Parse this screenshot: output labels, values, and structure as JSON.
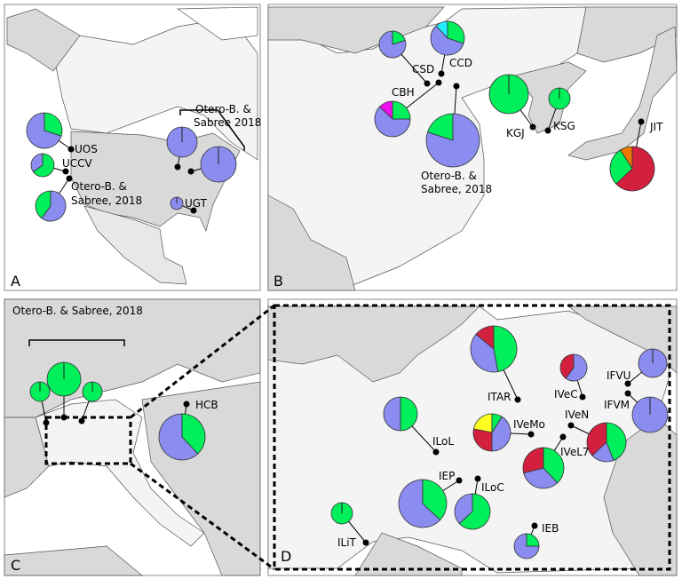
{
  "colors": {
    "blue": "#8a8cf0",
    "green": "#00ef5a",
    "red": "#d3203f",
    "cyan": "#22eeff",
    "magenta": "#ee11ee",
    "orange": "#ee7700",
    "yellow": "#ffff22",
    "sea": "#ffffff",
    "land_light": "#f4f4f4",
    "land_mid": "#d9d9d9",
    "land_dark": "#cccccc"
  },
  "panels": {
    "A": {
      "letter": "A",
      "citation_west_1": "Otero-B. &",
      "citation_west_2": "Sabree, 2018",
      "citation_east_1": "Otero-B. &",
      "citation_east_2": "Sabree 2018"
    },
    "B": {
      "letter": "B",
      "citation_1": "Otero-B. &",
      "citation_2": "Sabree, 2018"
    },
    "C": {
      "letter": "C",
      "citation": "Otero-B. & Sabree, 2018"
    },
    "D": {
      "letter": "D"
    }
  },
  "sites": [
    {
      "id": "UOS",
      "label": "UOS",
      "panel": "A",
      "slices": [
        [
          "green",
          0.3
        ],
        [
          "blue",
          0.7
        ]
      ]
    },
    {
      "id": "UCCV",
      "label": "UCCV",
      "panel": "A",
      "slices": [
        [
          "green",
          0.65
        ],
        [
          "blue",
          0.35
        ]
      ]
    },
    {
      "id": "OSW",
      "label": "",
      "panel": "A",
      "slices": [
        [
          "blue",
          0.6
        ],
        [
          "green",
          0.4
        ]
      ]
    },
    {
      "id": "OGL1",
      "label": "",
      "panel": "A",
      "slices": [
        [
          "blue",
          1
        ]
      ]
    },
    {
      "id": "OGL2",
      "label": "",
      "panel": "A",
      "slices": [
        [
          "blue",
          1
        ]
      ]
    },
    {
      "id": "UGT",
      "label": "UGT",
      "panel": "A",
      "slices": [
        [
          "blue",
          1
        ]
      ]
    },
    {
      "id": "CSD",
      "label": "CSD",
      "panel": "B",
      "slices": [
        [
          "green",
          0.2
        ],
        [
          "blue",
          0.8
        ]
      ]
    },
    {
      "id": "CCD",
      "label": "CCD",
      "panel": "B",
      "slices": [
        [
          "green",
          0.3
        ],
        [
          "blue",
          0.58
        ],
        [
          "cyan",
          0.12
        ]
      ]
    },
    {
      "id": "CBH",
      "label": "CBH",
      "panel": "B",
      "slices": [
        [
          "green",
          0.25
        ],
        [
          "blue",
          0.62
        ],
        [
          "magenta",
          0.13
        ]
      ]
    },
    {
      "id": "OCN",
      "label": "",
      "panel": "B",
      "slices": [
        [
          "blue",
          0.8
        ],
        [
          "green",
          0.2
        ]
      ]
    },
    {
      "id": "KGJ",
      "label": "KGJ",
      "panel": "B",
      "slices": [
        [
          "green",
          1
        ]
      ]
    },
    {
      "id": "KSG",
      "label": "KSG",
      "panel": "B",
      "slices": [
        [
          "green",
          1
        ]
      ]
    },
    {
      "id": "JIT",
      "label": "JIT",
      "panel": "B",
      "slices": [
        [
          "red",
          0.63
        ],
        [
          "green",
          0.28
        ],
        [
          "orange",
          0.09
        ]
      ]
    },
    {
      "id": "OEU1",
      "label": "",
      "panel": "C",
      "slices": [
        [
          "green",
          1
        ]
      ]
    },
    {
      "id": "OEU2",
      "label": "",
      "panel": "C",
      "slices": [
        [
          "green",
          1
        ]
      ]
    },
    {
      "id": "OEU3",
      "label": "",
      "panel": "C",
      "slices": [
        [
          "green",
          1
        ]
      ]
    },
    {
      "id": "HCB",
      "label": "HCB",
      "panel": "C",
      "slices": [
        [
          "green",
          0.38
        ],
        [
          "blue",
          0.62
        ]
      ]
    },
    {
      "id": "ITAR",
      "label": "ITAR",
      "panel": "D",
      "slices": [
        [
          "green",
          0.47
        ],
        [
          "blue",
          0.39
        ],
        [
          "red",
          0.14
        ]
      ]
    },
    {
      "id": "IVeC",
      "label": "IVeC",
      "panel": "D",
      "slices": [
        [
          "blue",
          0.6
        ],
        [
          "red",
          0.4
        ]
      ]
    },
    {
      "id": "IFVU",
      "label": "IFVU",
      "panel": "D",
      "slices": [
        [
          "blue",
          1
        ]
      ]
    },
    {
      "id": "IFVM",
      "label": "IFVM",
      "panel": "D",
      "slices": [
        [
          "blue",
          1
        ]
      ]
    },
    {
      "id": "ILoL",
      "label": "ILoL",
      "panel": "D",
      "slices": [
        [
          "green",
          0.5
        ],
        [
          "blue",
          0.5
        ]
      ]
    },
    {
      "id": "IVeMo",
      "label": "IVeMo",
      "panel": "D",
      "slices": [
        [
          "green",
          0.09
        ],
        [
          "blue",
          0.41
        ],
        [
          "red",
          0.28
        ],
        [
          "yellow",
          0.22
        ]
      ]
    },
    {
      "id": "IVeN",
      "label": "IVeN",
      "panel": "D",
      "slices": [
        [
          "green",
          0.44
        ],
        [
          "blue",
          0.19
        ],
        [
          "red",
          0.37
        ]
      ]
    },
    {
      "id": "IVeL7",
      "label": "IVeL7",
      "panel": "D",
      "slices": [
        [
          "green",
          0.38
        ],
        [
          "blue",
          0.33
        ],
        [
          "red",
          0.29
        ]
      ]
    },
    {
      "id": "IEP",
      "label": "IEP",
      "panel": "D",
      "slices": [
        [
          "green",
          0.37
        ],
        [
          "blue",
          0.63
        ]
      ]
    },
    {
      "id": "ILoC",
      "label": "ILoC",
      "panel": "D",
      "slices": [
        [
          "green",
          0.63
        ],
        [
          "blue",
          0.37
        ]
      ]
    },
    {
      "id": "ILiT",
      "label": "ILiT",
      "panel": "D",
      "slices": [
        [
          "green",
          1
        ]
      ]
    },
    {
      "id": "IEB",
      "label": "IEB",
      "panel": "D",
      "slices": [
        [
          "green",
          0.25
        ],
        [
          "blue",
          0.75
        ]
      ]
    }
  ]
}
